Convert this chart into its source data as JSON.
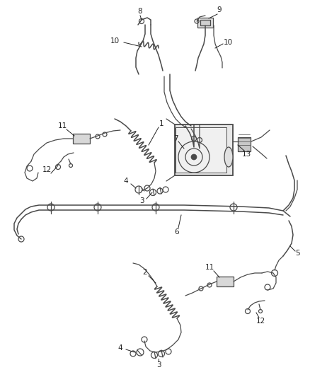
{
  "bg_color": "#ffffff",
  "line_color": "#4a4a4a",
  "label_color": "#222222",
  "label_fontsize": 7.5,
  "fig_width": 4.38,
  "fig_height": 5.33,
  "dpi": 100
}
